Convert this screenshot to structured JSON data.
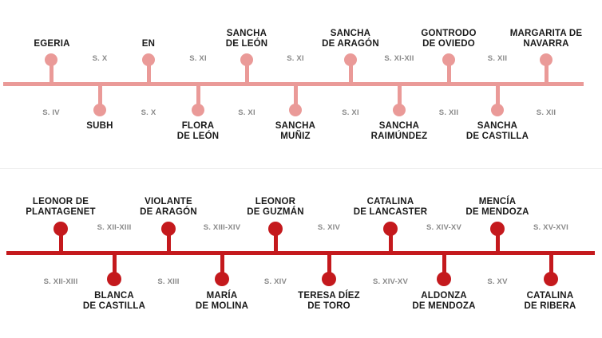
{
  "colors": {
    "top_timeline": "#ea9a98",
    "bottom_timeline": "#c4191d",
    "text": "#1a1a1a",
    "century_text": "#8a8a8a"
  },
  "timelines": [
    {
      "color": "#ea9a98",
      "events": [
        {
          "name": "EGERIA",
          "side": "up",
          "century": "S. IV"
        },
        {
          "name": "SUBH",
          "side": "down",
          "century": "S. X"
        },
        {
          "name": "EN",
          "side": "up",
          "century": "S. X"
        },
        {
          "name": "FLORA\nDE LEÓN",
          "side": "down",
          "century": "S. XI"
        },
        {
          "name": "SANCHA\nDE LEÓN",
          "side": "up",
          "century": "S. XI"
        },
        {
          "name": "SANCHA\nMUÑIZ",
          "side": "down",
          "century": "S. XI"
        },
        {
          "name": "SANCHA\nDE ARAGÓN",
          "side": "up",
          "century": "S. XI"
        },
        {
          "name": "SANCHA\nRAIMÚNDEZ",
          "side": "down",
          "century": "S. XI-XII"
        },
        {
          "name": "GONTRODO\nDE OVIEDO",
          "side": "up",
          "century": "S. XII"
        },
        {
          "name": "SANCHA\nDE CASTILLA",
          "side": "down",
          "century": "S. XII"
        },
        {
          "name": "MARGARITA DE\nNAVARRA",
          "side": "up",
          "century": "S. XII"
        }
      ]
    },
    {
      "color": "#c4191d",
      "events": [
        {
          "name": "LEONOR DE\nPLANTAGENET",
          "side": "up",
          "century": "S. XII-XIII"
        },
        {
          "name": "BLANCA\nDE CASTILLA",
          "side": "down",
          "century": "S. XII-XIII"
        },
        {
          "name": "VIOLANTE\nDE ARAGÓN",
          "side": "up",
          "century": "S. XIII"
        },
        {
          "name": "MARÍA\nDE MOLINA",
          "side": "down",
          "century": "S. XIII-XIV"
        },
        {
          "name": "LEONOR\nDE GUZMÁN",
          "side": "up",
          "century": "S. XIV"
        },
        {
          "name": "TERESA DÍEZ\nDE TORO",
          "side": "down",
          "century": "S. XIV"
        },
        {
          "name": "CATALINA\nDE LANCASTER",
          "side": "up",
          "century": "S. XIV-XV"
        },
        {
          "name": "ALDONZA\nDE MENDOZA",
          "side": "down",
          "century": "S. XIV-XV"
        },
        {
          "name": "MENCÍA\nDE MENDOZA",
          "side": "up",
          "century": "S. XV"
        },
        {
          "name": "CATALINA\nDE RIBERA",
          "side": "down",
          "century": "S. XV-XVI"
        }
      ]
    }
  ]
}
